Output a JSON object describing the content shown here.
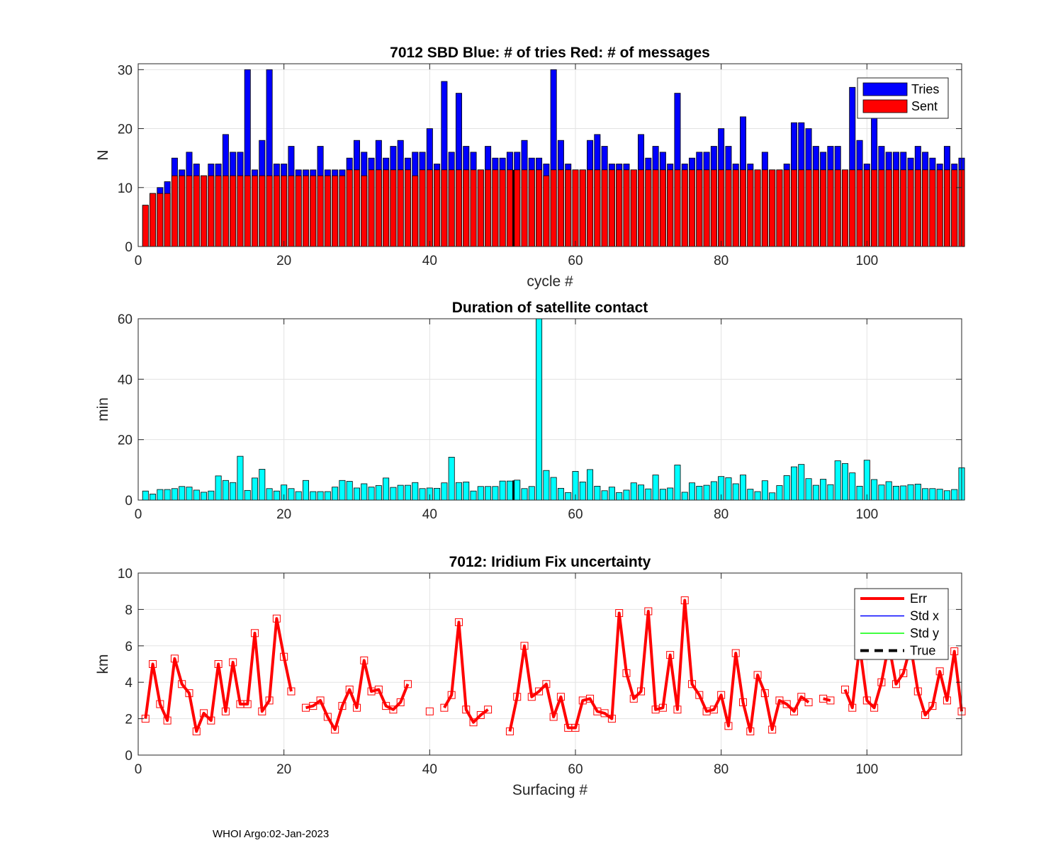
{
  "footer": "WHOI Argo:02-Jan-2023",
  "chart_data": [
    {
      "type": "bar",
      "title": "7012 SBD  Blue: # of tries   Red: # of messages",
      "xlabel": "cycle #",
      "ylabel": "N",
      "xlim": [
        0,
        113
      ],
      "ylim": [
        0,
        31
      ],
      "xticks": [
        0,
        20,
        40,
        60,
        80,
        100
      ],
      "yticks": [
        0,
        10,
        20,
        30
      ],
      "grid": true,
      "legend_position": "top-right",
      "series": [
        {
          "name": "Tries",
          "color": "#0000ff",
          "x_start": 1,
          "values": [
            7,
            9,
            10,
            11,
            15,
            13,
            16,
            14,
            12,
            14,
            14,
            19,
            16,
            16,
            30,
            13,
            18,
            30,
            14,
            14,
            17,
            13,
            13,
            13,
            17,
            13,
            13,
            13,
            15,
            18,
            16,
            15,
            18,
            15,
            17,
            18,
            15,
            16,
            16,
            20,
            14,
            28,
            16,
            26,
            17,
            16,
            13,
            17,
            15,
            15,
            16,
            16,
            18,
            15,
            15,
            14,
            30,
            18,
            14,
            13,
            13,
            18,
            19,
            17,
            14,
            14,
            14,
            13,
            19,
            15,
            17,
            16,
            14,
            26,
            14,
            15,
            16,
            16,
            17,
            20,
            17,
            14,
            22,
            14,
            13,
            16,
            13,
            13,
            14,
            21,
            21,
            20,
            17,
            16,
            17,
            17,
            13,
            27,
            18,
            14,
            22,
            17,
            16,
            16,
            16,
            15,
            17,
            16,
            15,
            14,
            17,
            14,
            15
          ]
        },
        {
          "name": "Sent",
          "color": "#ff0000",
          "x_start": 1,
          "values": [
            7,
            9,
            9,
            9,
            12,
            12,
            12,
            12,
            12,
            12,
            12,
            12,
            12,
            12,
            12,
            12,
            12,
            12,
            12,
            12,
            12,
            12,
            12,
            12,
            12,
            12,
            12,
            12,
            13,
            13,
            12,
            13,
            13,
            13,
            13,
            13,
            13,
            12,
            13,
            13,
            13,
            13,
            13,
            13,
            13,
            13,
            13,
            13,
            13,
            13,
            13,
            13,
            13,
            13,
            13,
            12,
            13,
            13,
            13,
            13,
            13,
            13,
            13,
            13,
            13,
            13,
            13,
            13,
            13,
            13,
            13,
            13,
            13,
            13,
            13,
            13,
            13,
            13,
            13,
            13,
            13,
            13,
            13,
            13,
            13,
            13,
            13,
            13,
            13,
            13,
            13,
            13,
            13,
            13,
            13,
            13,
            13,
            13,
            13,
            13,
            13,
            13,
            13,
            13,
            13,
            13,
            13,
            13,
            13,
            13,
            13,
            13,
            13
          ]
        }
      ],
      "marker_x": 51.5
    },
    {
      "type": "bar",
      "title": "Duration of satellite contact",
      "xlabel": "",
      "ylabel": "min",
      "xlim": [
        0,
        113
      ],
      "ylim": [
        0,
        60
      ],
      "xticks": [
        0,
        20,
        40,
        60,
        80,
        100
      ],
      "yticks": [
        0,
        20,
        40,
        60
      ],
      "grid": true,
      "series": [
        {
          "name": "Duration",
          "color": "#00ffff",
          "x_start": 1,
          "values": [
            3,
            2,
            3.5,
            3.5,
            3.8,
            4.5,
            4.3,
            3.3,
            2.6,
            3,
            8,
            6.5,
            5.8,
            14.5,
            3.2,
            7.3,
            10.2,
            3.8,
            3,
            5,
            3.8,
            2.8,
            6.5,
            2.8,
            2.8,
            2.8,
            4.3,
            6.5,
            6.2,
            4,
            5.4,
            4.3,
            4.8,
            7.3,
            4.2,
            4.9,
            4.9,
            5.8,
            3.8,
            4,
            3.9,
            5.7,
            14.2,
            5.8,
            6,
            3,
            4.5,
            4.5,
            4.5,
            6.3,
            6.3,
            6.6,
            3.8,
            4.5,
            60,
            9.8,
            7.5,
            3.9,
            2.5,
            9.5,
            6,
            10.1,
            4.6,
            3.1,
            4.3,
            2.5,
            3.3,
            5.7,
            5,
            3.7,
            8.3,
            3.6,
            4,
            11.6,
            2.6,
            5.7,
            4.6,
            4.9,
            6.1,
            7.8,
            7.4,
            5.4,
            8.3,
            3.6,
            2.8,
            6.4,
            2.4,
            4.8,
            8.1,
            11,
            11.8,
            7.1,
            4.9,
            6.9,
            5.1,
            13,
            12.1,
            9,
            4.6,
            13.2,
            6.8,
            5,
            6.1,
            4.6,
            4.7,
            5.1,
            5.3,
            3.8,
            3.8,
            3.6,
            3.1,
            3.5,
            10.7
          ]
        }
      ],
      "marker_x": 51.5
    },
    {
      "type": "line",
      "title": "7012: Iridium Fix uncertainty",
      "xlabel": "Surfacing #",
      "ylabel": "km",
      "xlim": [
        0,
        113
      ],
      "ylim": [
        0,
        10
      ],
      "xticks": [
        0,
        20,
        40,
        60,
        80,
        100
      ],
      "yticks": [
        0,
        2,
        4,
        6,
        8,
        10
      ],
      "grid": true,
      "legend_position": "top-right",
      "legend": [
        {
          "name": "Err",
          "color": "#ff0000",
          "style": "solid-thick"
        },
        {
          "name": "Std x",
          "color": "#0000ff",
          "style": "solid"
        },
        {
          "name": "Std y",
          "color": "#00ff00",
          "style": "solid"
        },
        {
          "name": "True",
          "color": "#000000",
          "style": "dashed"
        }
      ],
      "series": [
        {
          "name": "Err",
          "color": "#ff0000",
          "x_start": 1,
          "values": [
            2,
            5,
            2.8,
            1.9,
            5.3,
            3.9,
            3.4,
            1.3,
            2.3,
            1.9,
            5,
            2.4,
            5.1,
            2.8,
            2.8,
            6.7,
            2.4,
            3,
            7.5,
            5.4,
            3.5,
            null,
            2.6,
            2.7,
            3,
            2.1,
            1.4,
            2.7,
            3.6,
            2.6,
            5.2,
            3.5,
            3.6,
            2.7,
            2.5,
            2.9,
            3.9,
            null,
            null,
            2.4,
            null,
            2.6,
            3.3,
            7.3,
            2.5,
            1.8,
            2.2,
            2.5,
            null,
            null,
            1.3,
            3.2,
            6,
            3.2,
            3.5,
            3.9,
            2.1,
            3.2,
            1.5,
            1.5,
            3,
            3.1,
            2.4,
            2.3,
            2,
            7.8,
            4.5,
            3.1,
            3.5,
            7.9,
            2.5,
            2.6,
            5.5,
            2.5,
            8.5,
            3.9,
            3.3,
            2.4,
            2.5,
            3.3,
            1.6,
            5.6,
            2.9,
            1.3,
            4.4,
            3.4,
            1.4,
            3,
            2.8,
            2.4,
            3.2,
            2.9,
            null,
            3.1,
            3,
            null,
            3.6,
            2.6,
            6,
            3,
            2.6,
            4,
            6.1,
            3.9,
            4.5,
            6,
            3.5,
            2.2,
            2.7,
            4.6,
            3,
            5.7,
            2.4
          ]
        }
      ]
    }
  ]
}
